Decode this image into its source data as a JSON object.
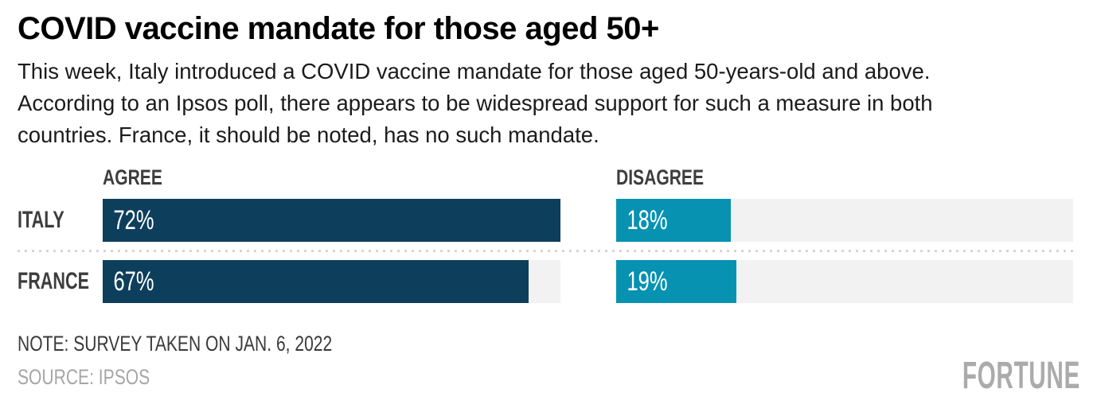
{
  "chart_data": {
    "type": "bar",
    "orientation": "horizontal",
    "title": "COVID vaccine mandate for those aged 50+",
    "subtitle_lines": [
      "This week, Italy introduced a COVID vaccine mandate for those aged 50-years-old and above.",
      "According to an Ipsos poll, there appears to be widespread support for such a measure in both",
      "countries. France, it should be noted, has no such mandate."
    ],
    "categories": [
      "ITALY",
      "FRANCE"
    ],
    "series": [
      {
        "name": "AGREE",
        "values": [
          72,
          67
        ],
        "labels": [
          "72%",
          "67%"
        ],
        "color": "#0d3e5c"
      },
      {
        "name": "DISAGREE",
        "values": [
          18,
          19
        ],
        "labels": [
          "18%",
          "19%"
        ],
        "color": "#0792b2"
      }
    ],
    "unit": "%",
    "axis_max": 72,
    "grid": false,
    "legend_position": "column-headers",
    "note": "NOTE: SURVEY TAKEN ON JAN. 6, 2022",
    "source": "SOURCE: IPSOS"
  },
  "colors": {
    "agree_bar": "#0d3e5c",
    "disagree_bar": "#0792b2",
    "bar_track": "#f2f2f2",
    "row_divider_dots": "#d5d5d5",
    "label_gray": "#3d3d3d",
    "source_gray": "#a6a6a6",
    "brand_gray": "#ababab",
    "background": "#ffffff"
  },
  "footer": {
    "brand": "FORTUNE"
  }
}
